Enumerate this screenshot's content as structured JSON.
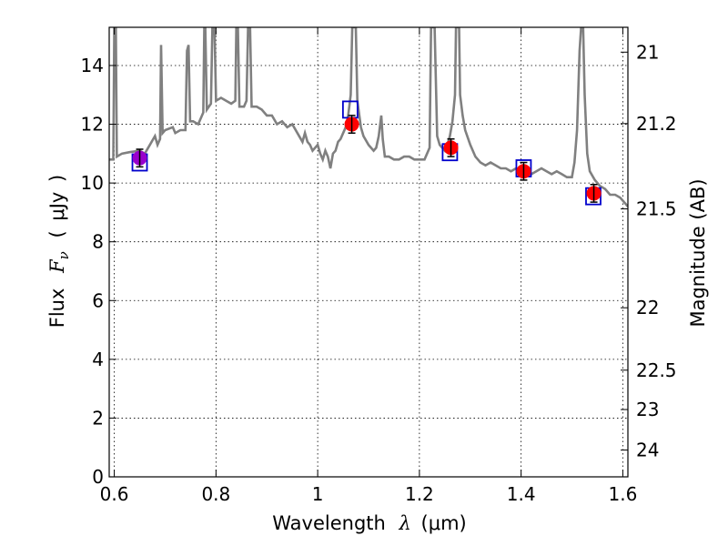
{
  "chart_data": {
    "type": "line",
    "xlabel": {
      "text": "Wavelength",
      "symbol": "λ",
      "unit": "(μm)"
    },
    "ylabel": {
      "text": "Flux",
      "symbol": "F",
      "subscript": "ν",
      "unit": "μJy"
    },
    "y2label": "Magnitude (AB)",
    "xlim": [
      0.59,
      1.61
    ],
    "ylim": [
      0,
      15.3
    ],
    "grid": true,
    "x_ticks": [
      {
        "value": 0.6,
        "label": "0.6"
      },
      {
        "value": 0.8,
        "label": "0.8"
      },
      {
        "value": 1.0,
        "label": "1"
      },
      {
        "value": 1.2,
        "label": "1.2"
      },
      {
        "value": 1.4,
        "label": "1.4"
      },
      {
        "value": 1.6,
        "label": "1.6"
      }
    ],
    "y_ticks": [
      {
        "value": 0,
        "label": "0"
      },
      {
        "value": 2,
        "label": "2"
      },
      {
        "value": 4,
        "label": "4"
      },
      {
        "value": 6,
        "label": "6"
      },
      {
        "value": 8,
        "label": "8"
      },
      {
        "value": 10,
        "label": "10"
      },
      {
        "value": 12,
        "label": "12"
      },
      {
        "value": 14,
        "label": "14"
      }
    ],
    "y2_ticks": [
      {
        "value": 21,
        "label": "21"
      },
      {
        "value": 21.2,
        "label": "21.2"
      },
      {
        "value": 21.5,
        "label": "21.5"
      },
      {
        "value": 22,
        "label": "22"
      },
      {
        "value": 22.5,
        "label": "22.5"
      },
      {
        "value": 23,
        "label": "23"
      },
      {
        "value": 24,
        "label": "24"
      }
    ],
    "series": [
      {
        "kind": "line",
        "color": "#808080",
        "points": [
          [
            0.59,
            10.8
          ],
          [
            0.598,
            10.8
          ],
          [
            0.6,
            15.3
          ],
          [
            0.603,
            15.3
          ],
          [
            0.605,
            10.9
          ],
          [
            0.615,
            11.0
          ],
          [
            0.63,
            11.05
          ],
          [
            0.65,
            11.1
          ],
          [
            0.66,
            11.0
          ],
          [
            0.67,
            11.3
          ],
          [
            0.68,
            11.6
          ],
          [
            0.685,
            11.3
          ],
          [
            0.69,
            11.5
          ],
          [
            0.692,
            14.7
          ],
          [
            0.695,
            11.7
          ],
          [
            0.7,
            11.8
          ],
          [
            0.715,
            11.9
          ],
          [
            0.72,
            11.7
          ],
          [
            0.73,
            11.8
          ],
          [
            0.74,
            11.8
          ],
          [
            0.743,
            14.5
          ],
          [
            0.746,
            14.7
          ],
          [
            0.749,
            12.1
          ],
          [
            0.755,
            12.1
          ],
          [
            0.765,
            12.0
          ],
          [
            0.77,
            12.2
          ],
          [
            0.775,
            12.4
          ],
          [
            0.777,
            15.3
          ],
          [
            0.779,
            15.3
          ],
          [
            0.782,
            12.5
          ],
          [
            0.79,
            12.7
          ],
          [
            0.793,
            15.3
          ],
          [
            0.797,
            15.3
          ],
          [
            0.8,
            12.8
          ],
          [
            0.81,
            12.9
          ],
          [
            0.82,
            12.8
          ],
          [
            0.83,
            12.7
          ],
          [
            0.838,
            12.8
          ],
          [
            0.84,
            15.3
          ],
          [
            0.843,
            15.3
          ],
          [
            0.846,
            12.6
          ],
          [
            0.855,
            12.6
          ],
          [
            0.86,
            12.8
          ],
          [
            0.863,
            15.3
          ],
          [
            0.867,
            15.3
          ],
          [
            0.87,
            12.6
          ],
          [
            0.88,
            12.6
          ],
          [
            0.89,
            12.5
          ],
          [
            0.9,
            12.3
          ],
          [
            0.91,
            12.3
          ],
          [
            0.92,
            12.0
          ],
          [
            0.93,
            12.1
          ],
          [
            0.94,
            11.9
          ],
          [
            0.95,
            12.0
          ],
          [
            0.96,
            11.7
          ],
          [
            0.97,
            11.4
          ],
          [
            0.975,
            11.7
          ],
          [
            0.98,
            11.4
          ],
          [
            0.985,
            11.3
          ],
          [
            0.99,
            11.1
          ],
          [
            1.0,
            11.3
          ],
          [
            1.005,
            11.0
          ],
          [
            1.01,
            10.8
          ],
          [
            1.015,
            11.1
          ],
          [
            1.02,
            10.9
          ],
          [
            1.025,
            10.5
          ],
          [
            1.03,
            11.0
          ],
          [
            1.035,
            11.1
          ],
          [
            1.04,
            11.4
          ],
          [
            1.045,
            11.5
          ],
          [
            1.05,
            11.7
          ],
          [
            1.055,
            11.9
          ],
          [
            1.06,
            12.3
          ],
          [
            1.065,
            13.0
          ],
          [
            1.068,
            15.3
          ],
          [
            1.075,
            15.3
          ],
          [
            1.078,
            12.8
          ],
          [
            1.085,
            11.9
          ],
          [
            1.09,
            11.6
          ],
          [
            1.1,
            11.3
          ],
          [
            1.11,
            11.1
          ],
          [
            1.115,
            11.2
          ],
          [
            1.12,
            11.6
          ],
          [
            1.125,
            12.3
          ],
          [
            1.128,
            11.5
          ],
          [
            1.132,
            10.9
          ],
          [
            1.14,
            10.9
          ],
          [
            1.15,
            10.8
          ],
          [
            1.16,
            10.8
          ],
          [
            1.17,
            10.9
          ],
          [
            1.18,
            10.9
          ],
          [
            1.19,
            10.8
          ],
          [
            1.2,
            10.8
          ],
          [
            1.21,
            10.8
          ],
          [
            1.215,
            11.0
          ],
          [
            1.22,
            11.2
          ],
          [
            1.223,
            15.3
          ],
          [
            1.23,
            15.3
          ],
          [
            1.235,
            11.6
          ],
          [
            1.24,
            11.3
          ],
          [
            1.25,
            11.1
          ],
          [
            1.255,
            11.3
          ],
          [
            1.26,
            11.6
          ],
          [
            1.265,
            12.1
          ],
          [
            1.27,
            13.0
          ],
          [
            1.272,
            15.3
          ],
          [
            1.278,
            15.3
          ],
          [
            1.28,
            13.0
          ],
          [
            1.285,
            12.3
          ],
          [
            1.29,
            11.8
          ],
          [
            1.3,
            11.3
          ],
          [
            1.31,
            10.9
          ],
          [
            1.32,
            10.7
          ],
          [
            1.33,
            10.6
          ],
          [
            1.34,
            10.7
          ],
          [
            1.35,
            10.6
          ],
          [
            1.36,
            10.5
          ],
          [
            1.37,
            10.5
          ],
          [
            1.38,
            10.4
          ],
          [
            1.39,
            10.5
          ],
          [
            1.4,
            10.4
          ],
          [
            1.41,
            10.4
          ],
          [
            1.42,
            10.3
          ],
          [
            1.43,
            10.4
          ],
          [
            1.44,
            10.5
          ],
          [
            1.45,
            10.4
          ],
          [
            1.46,
            10.3
          ],
          [
            1.47,
            10.4
          ],
          [
            1.48,
            10.3
          ],
          [
            1.49,
            10.2
          ],
          [
            1.5,
            10.2
          ],
          [
            1.505,
            10.7
          ],
          [
            1.51,
            11.8
          ],
          [
            1.515,
            14.5
          ],
          [
            1.518,
            15.3
          ],
          [
            1.522,
            15.3
          ],
          [
            1.525,
            13.0
          ],
          [
            1.53,
            11.0
          ],
          [
            1.535,
            10.4
          ],
          [
            1.545,
            10.1
          ],
          [
            1.555,
            9.9
          ],
          [
            1.565,
            9.8
          ],
          [
            1.575,
            9.6
          ],
          [
            1.585,
            9.6
          ],
          [
            1.595,
            9.5
          ],
          [
            1.605,
            9.3
          ],
          [
            1.61,
            9.2
          ]
        ]
      },
      {
        "kind": "model_points",
        "color": "#0000cc",
        "x": [
          0.65,
          1.064,
          1.26,
          1.405,
          1.542
        ],
        "y": [
          10.7,
          12.5,
          11.05,
          10.5,
          9.55
        ]
      },
      {
        "kind": "observed_points",
        "colors": [
          "#9900cc",
          "#ff0000",
          "#ff0000",
          "#ff0000",
          "#ff0000"
        ],
        "x": [
          0.65,
          1.067,
          1.262,
          1.405,
          1.543
        ],
        "y": [
          10.85,
          12.0,
          11.2,
          10.4,
          9.65
        ],
        "yerr": [
          0.3,
          0.3,
          0.3,
          0.3,
          0.3
        ]
      }
    ]
  }
}
